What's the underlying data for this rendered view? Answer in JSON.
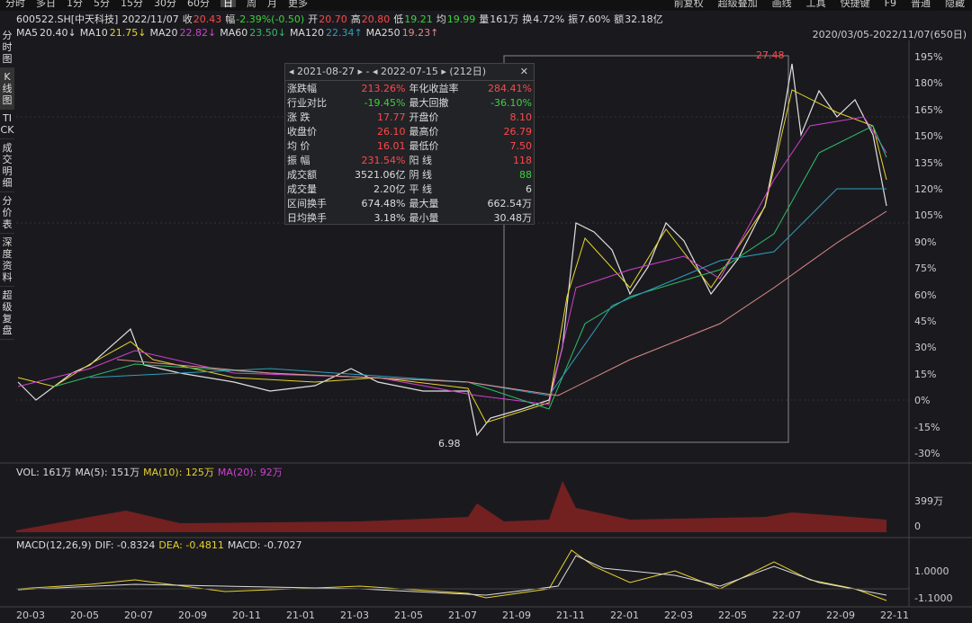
{
  "tabs": [
    "分时",
    "多日",
    "1分",
    "5分",
    "15分",
    "30分",
    "60分",
    "日",
    "周",
    "月",
    "更多"
  ],
  "tools": [
    "前复权",
    "超级叠加",
    "画线",
    "工具",
    "快捷键",
    "F9",
    "普通",
    "隐藏"
  ],
  "quote": {
    "code": "600522.SH[中天科技]",
    "date": "2022/11/07",
    "items": [
      [
        "收",
        "20.43"
      ],
      [
        "幅",
        "-2.39%(-0.50)"
      ],
      [
        "开",
        "20.70"
      ],
      [
        "高",
        "20.80"
      ],
      [
        "低",
        "19.21"
      ],
      [
        "均",
        "19.99"
      ],
      [
        "量",
        "161万"
      ],
      [
        "换",
        "4.72%"
      ],
      [
        "振",
        "7.60%"
      ],
      [
        "额",
        "32.18亿"
      ]
    ]
  },
  "ma": [
    [
      "MA5",
      "20.40↓"
    ],
    [
      "MA10",
      "21.75↓"
    ],
    [
      "MA20",
      "22.82↓"
    ],
    [
      "MA60",
      "23.50↓"
    ],
    [
      "MA120",
      "22.34↑"
    ],
    [
      "MA250",
      "19.23↑"
    ]
  ],
  "range": "2020/03/05-2022/11/07(650日)",
  "side": [
    "分时图",
    "K线图",
    "TICK",
    "成交明细",
    "分价表",
    "深度资料",
    "超级复盘"
  ],
  "y_axis": [
    "195%",
    "180%",
    "165%",
    "150%",
    "135%",
    "120%",
    "105%",
    "90%",
    "75%",
    "60%",
    "45%",
    "30%",
    "15%",
    "0%",
    "-15%",
    "-30%"
  ],
  "price_high": "27.48",
  "price_low": "6.98",
  "stat_box": {
    "from": "2021-08-27",
    "to": "2022-07-15",
    "days": "(212日)",
    "rows": [
      [
        "涨跌幅",
        "213.26%",
        "年化收益率",
        "284.41%"
      ],
      [
        "行业对比",
        "-19.45%",
        "最大回撤",
        "-36.10%"
      ],
      [
        "涨  跌",
        "17.77",
        "开盘价",
        "8.10"
      ],
      [
        "收盘价",
        "26.10",
        "最高价",
        "26.79"
      ],
      [
        "均  价",
        "16.01",
        "最低价",
        "7.50"
      ],
      [
        "振  幅",
        "231.54%",
        "阳  线",
        "118"
      ],
      [
        "成交额",
        "3521.06亿",
        "阴  线",
        "88"
      ],
      [
        "成交量",
        "2.20亿",
        "平  线",
        "6"
      ],
      [
        "区间换手",
        "674.48%",
        "最大量",
        "662.54万"
      ],
      [
        "日均换手",
        "3.18%",
        "最小量",
        "30.48万"
      ]
    ]
  },
  "vol": {
    "items": [
      "VOL: 161万",
      "MA(5): 151万",
      "MA(10): 125万",
      "MA(20): 92万"
    ],
    "axis": [
      "399万",
      "0"
    ]
  },
  "macd": {
    "items": [
      "MACD(12,26,9)",
      "DIF: -0.8324",
      "DEA: -0.4811",
      "MACD: -0.7027"
    ],
    "axis": [
      "1.0000",
      "-1.1000"
    ]
  },
  "x_axis": [
    "20-03",
    "20-05",
    "20-07",
    "20-09",
    "20-11",
    "21-01",
    "21-03",
    "21-05",
    "21-07",
    "21-09",
    "21-11",
    "22-01",
    "22-03",
    "22-05",
    "22-07",
    "22-09",
    "22-11"
  ]
}
